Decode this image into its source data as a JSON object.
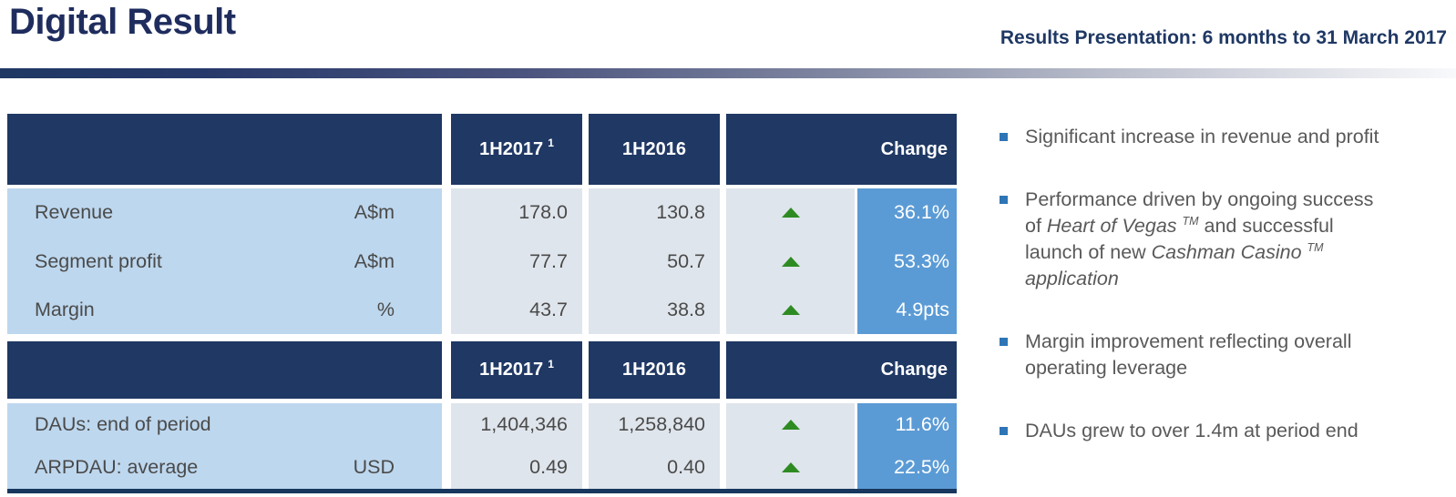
{
  "header": {
    "title": "Digital Result",
    "subtitle": "Results Presentation: 6 months to 31 March 2017"
  },
  "table": {
    "sections": [
      {
        "columns": {
          "blank": "",
          "col_2017": "1H2017",
          "footnote": "1",
          "col_2016": "1H2016",
          "col_change": "Change"
        },
        "rows": [
          {
            "label": "Revenue",
            "unit": "A$m",
            "v2017": "178.0",
            "v2016": "130.8",
            "direction": "up",
            "change": "36.1%"
          },
          {
            "label": "Segment profit",
            "unit": "A$m",
            "v2017": "77.7",
            "v2016": "50.7",
            "direction": "up",
            "change": "53.3%"
          },
          {
            "label": "Margin",
            "unit": "%",
            "v2017": "43.7",
            "v2016": "38.8",
            "direction": "up",
            "change": "4.9pts"
          }
        ]
      },
      {
        "columns": {
          "blank": "",
          "col_2017": "1H2017",
          "footnote": "1",
          "col_2016": "1H2016",
          "col_change": "Change"
        },
        "rows": [
          {
            "label": "DAUs: end of period",
            "unit": "",
            "v2017": "1,404,346",
            "v2016": "1,258,840",
            "direction": "up",
            "change": "11.6%"
          },
          {
            "label": "ARPDAU: average",
            "unit": "USD",
            "v2017": "0.49",
            "v2016": "0.40",
            "direction": "up",
            "change": "22.5%"
          }
        ]
      }
    ]
  },
  "bullets": [
    {
      "segments": [
        {
          "text": "Significant increase in revenue and profit"
        }
      ]
    },
    {
      "segments": [
        {
          "text": "Performance driven by ongoing success"
        },
        {
          "br": true
        },
        {
          "text": "of "
        },
        {
          "text": "Heart of Vegas ",
          "italic": true
        },
        {
          "text": "TM",
          "italic": true,
          "sup": true
        },
        {
          "text": " and successful"
        },
        {
          "br": true
        },
        {
          "text": "launch of new "
        },
        {
          "text": "Cashman Casino ",
          "italic": true
        },
        {
          "text": "TM",
          "italic": true,
          "sup": true
        },
        {
          "br": true
        },
        {
          "text": "application",
          "italic": true
        }
      ]
    },
    {
      "segments": [
        {
          "text": "Margin improvement reflecting overall"
        },
        {
          "br": true
        },
        {
          "text": "operating leverage"
        }
      ]
    },
    {
      "segments": [
        {
          "text": "DAUs grew to over 1.4m at period end"
        }
      ]
    }
  ],
  "icons": {
    "up_arrow": "▲",
    "bullet_marker": "■"
  },
  "colors": {
    "title_navy": "#1f2d5e",
    "header_navy": "#1f3864",
    "label_blue": "#bdd7ee",
    "cell_gray": "#dfe5ec",
    "change_blue": "#5b9bd5",
    "arrow_green": "#2e8b22",
    "body_text_gray": "#4a4a4a",
    "bullet_text_gray": "#595959",
    "bullet_square_blue": "#2e75b6"
  }
}
